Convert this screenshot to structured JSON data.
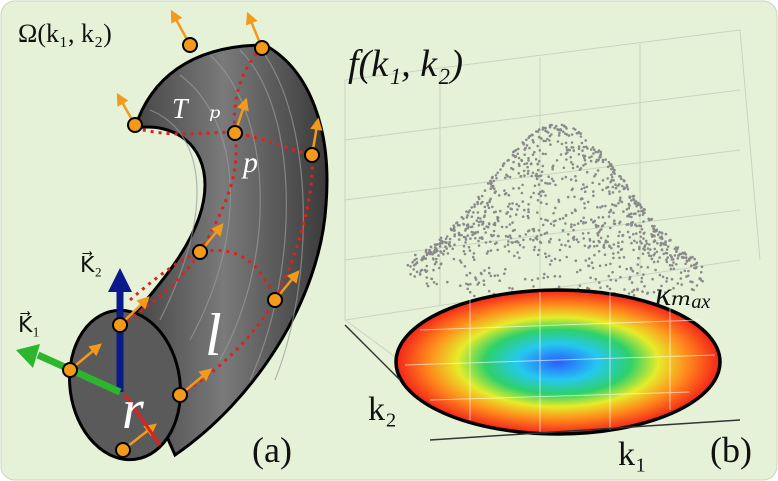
{
  "panel_a": {
    "domain_label": "Ω(k₁, k₂)",
    "tangent_label": "T⃗ₚ",
    "point_label": "p",
    "length_label": "l",
    "radius_label": "r",
    "axis_k2_label": "K⃗₂",
    "axis_k1_label": "K⃗₁",
    "caption": "(a)"
  },
  "panel_b": {
    "function_label": "f(k₁, k₂)",
    "kappa_label": "κₘₐₓ",
    "k2_label": "k₂",
    "k1_label": "k₁",
    "caption": "(b)"
  }
}
